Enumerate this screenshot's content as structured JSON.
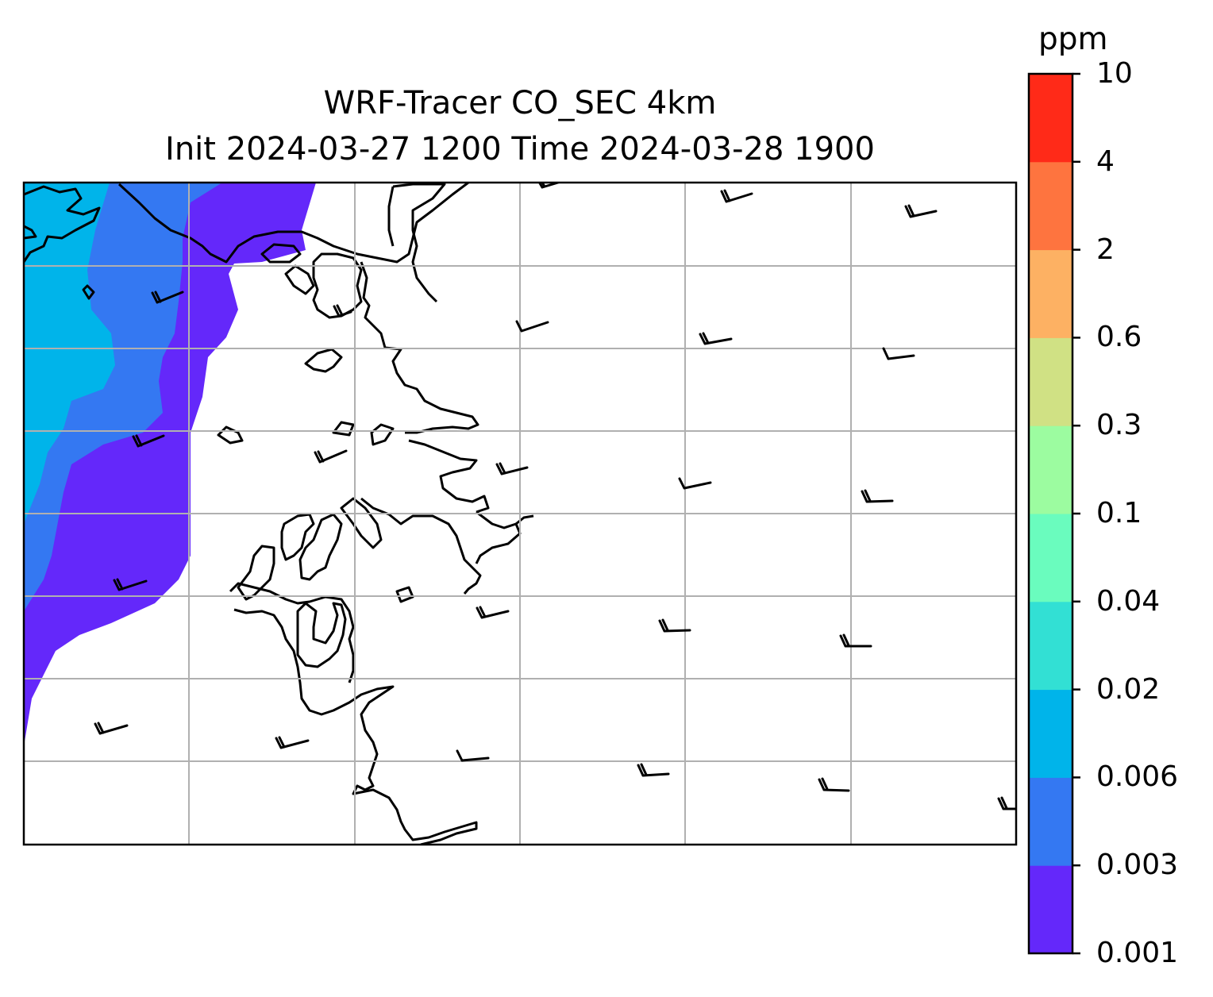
{
  "figure": {
    "title_line1": "WRF-Tracer CO_SEC 4km",
    "title_line2": "Init 2024-03-27 1200 Time 2024-03-28 1900"
  },
  "map": {
    "variable": "CO_SEC",
    "gridlines": true,
    "coastline_color": "#000000",
    "gridline_color": "#b0b0b0",
    "wind_barbs_color": "#000000"
  },
  "colorbar": {
    "unit": "ppm",
    "ticks": [
      "0.001",
      "0.003",
      "0.006",
      "0.02",
      "0.04",
      "0.1",
      "0.3",
      "0.6",
      "2",
      "4",
      "10"
    ],
    "colors": [
      "#6428fa",
      "#3478f2",
      "#00b4ea",
      "#32e0d4",
      "#6afcbe",
      "#9cfca0",
      "#d0e184",
      "#fdb163",
      "#fe743f",
      "#ff2a18"
    ]
  }
}
